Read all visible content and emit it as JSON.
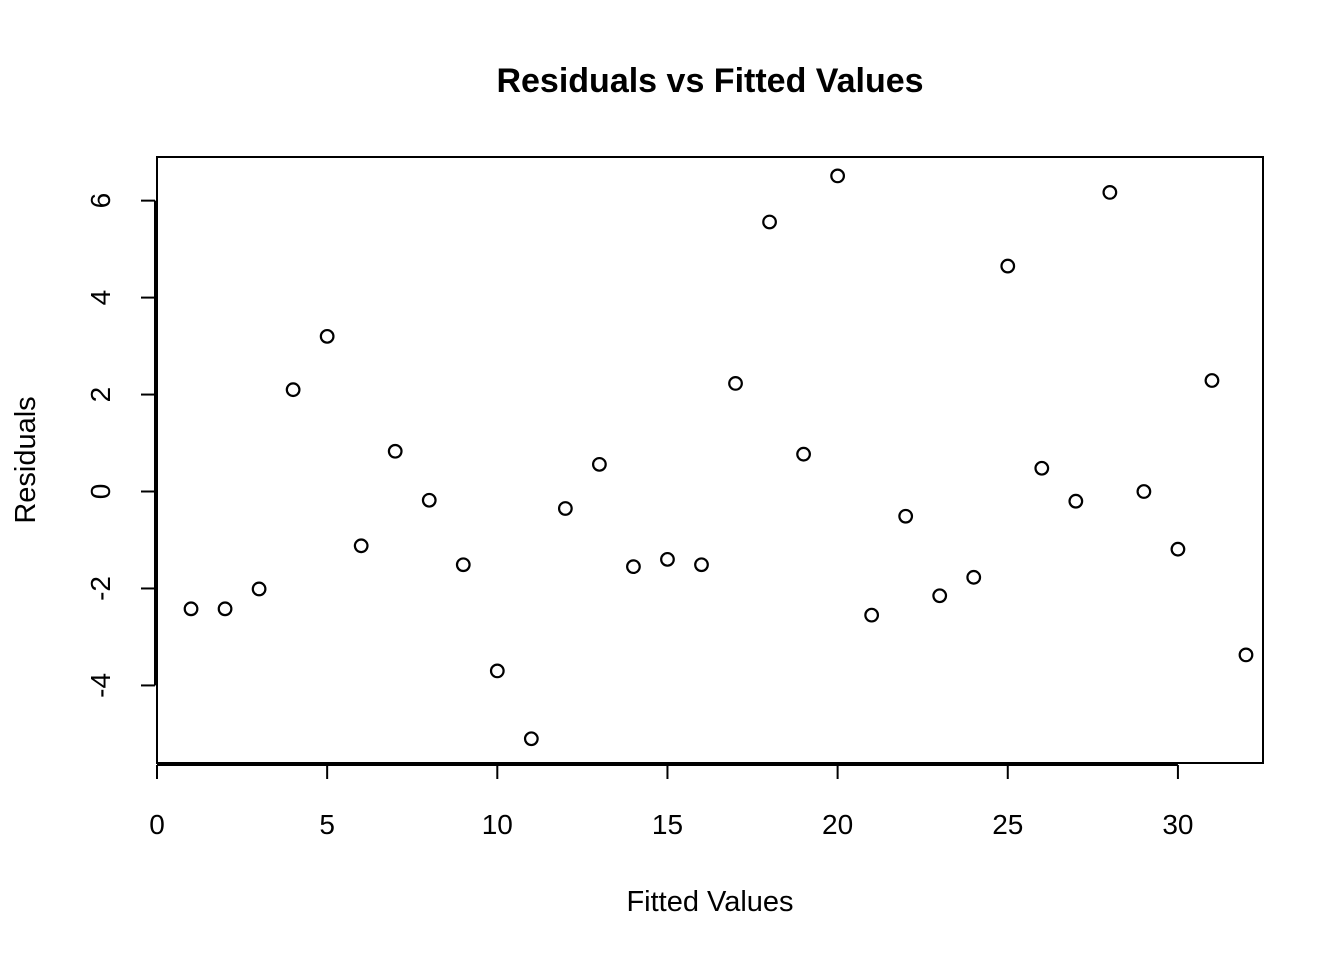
{
  "chart_data": {
    "type": "scatter",
    "title": "Residuals vs Fitted Values",
    "xlabel": "Fitted Values",
    "ylabel": "Residuals",
    "xlim": [
      0,
      32.5
    ],
    "ylim": [
      -5.6,
      6.9
    ],
    "x_ticks": [
      0,
      5,
      10,
      15,
      20,
      25,
      30
    ],
    "y_ticks": [
      -4,
      -2,
      0,
      2,
      4,
      6
    ],
    "grid": false,
    "legend": "none",
    "point_style": "open-circle",
    "points": [
      {
        "x": 1,
        "y": -2.42
      },
      {
        "x": 2,
        "y": -2.42
      },
      {
        "x": 3,
        "y": -2.01
      },
      {
        "x": 4,
        "y": 2.1
      },
      {
        "x": 5,
        "y": 3.2
      },
      {
        "x": 6,
        "y": -1.12
      },
      {
        "x": 7,
        "y": 0.83
      },
      {
        "x": 8,
        "y": -0.18
      },
      {
        "x": 9,
        "y": -1.51
      },
      {
        "x": 10,
        "y": -3.7
      },
      {
        "x": 11,
        "y": -5.1
      },
      {
        "x": 12,
        "y": -0.35
      },
      {
        "x": 13,
        "y": 0.56
      },
      {
        "x": 14,
        "y": -1.55
      },
      {
        "x": 15,
        "y": -1.4
      },
      {
        "x": 16,
        "y": -1.51
      },
      {
        "x": 17,
        "y": 2.23
      },
      {
        "x": 18,
        "y": 5.56
      },
      {
        "x": 19,
        "y": 0.77
      },
      {
        "x": 20,
        "y": 6.51
      },
      {
        "x": 21,
        "y": -2.55
      },
      {
        "x": 22,
        "y": -0.51
      },
      {
        "x": 23,
        "y": -2.15
      },
      {
        "x": 24,
        "y": -1.77
      },
      {
        "x": 25,
        "y": 4.65
      },
      {
        "x": 26,
        "y": 0.48
      },
      {
        "x": 27,
        "y": -0.2
      },
      {
        "x": 28,
        "y": 6.17
      },
      {
        "x": 29,
        "y": 0.0
      },
      {
        "x": 30,
        "y": -1.19
      },
      {
        "x": 31,
        "y": 2.29
      },
      {
        "x": 32,
        "y": -3.37
      }
    ]
  }
}
